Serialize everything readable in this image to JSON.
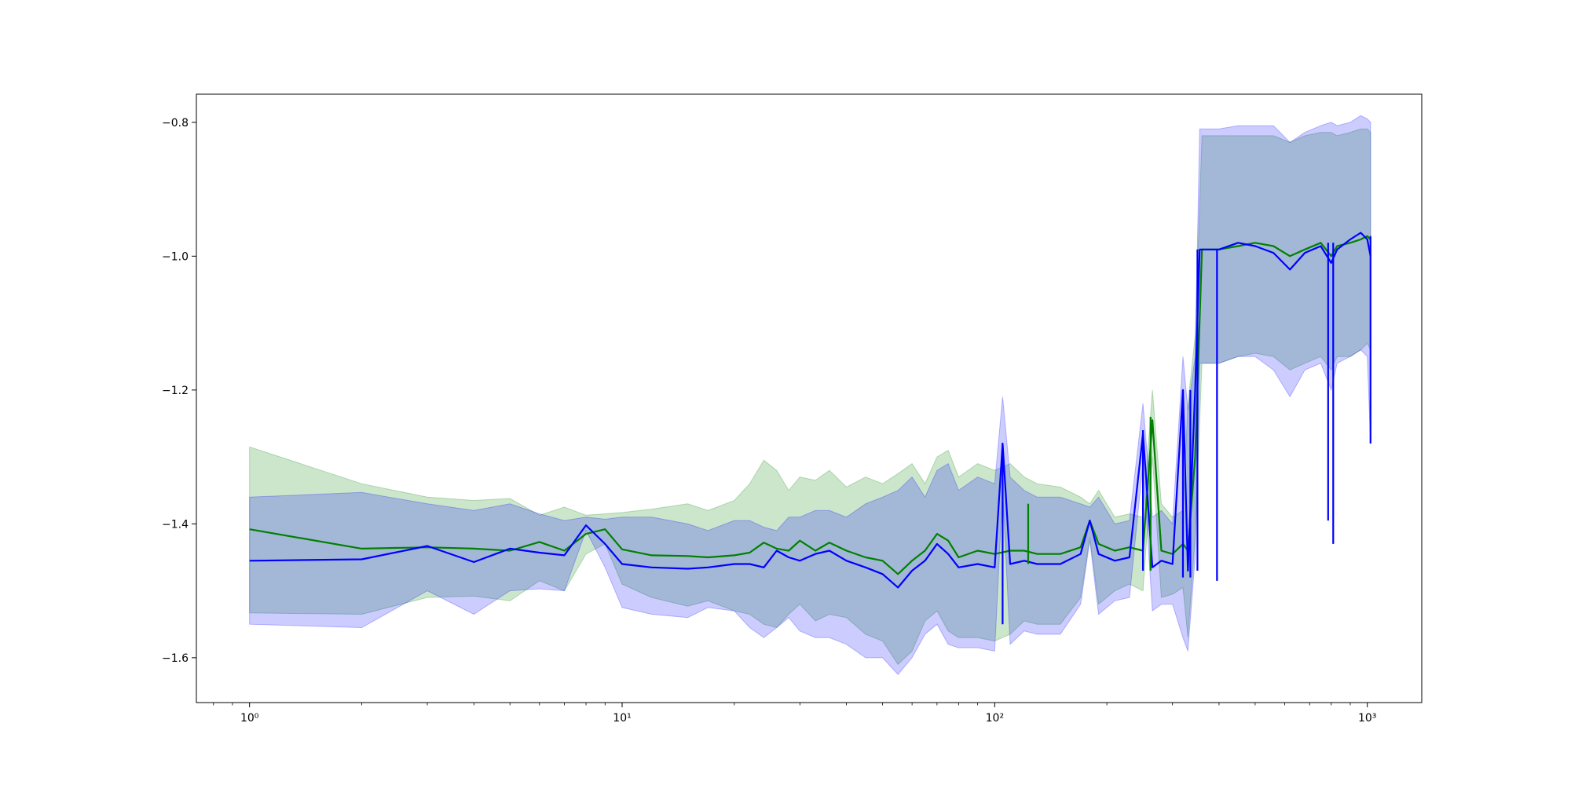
{
  "chart_data": {
    "type": "line",
    "title": "",
    "xlabel": "",
    "ylabel": "",
    "x_scale": "log",
    "xlim": [
      0.72,
      1400
    ],
    "ylim": [
      -1.667,
      -0.758
    ],
    "grid": false,
    "legend": "none",
    "x_ticks": [
      {
        "value": 1,
        "label": "10⁰"
      },
      {
        "value": 10,
        "label": "10¹"
      },
      {
        "value": 100,
        "label": "10²"
      },
      {
        "value": 1000,
        "label": "10³"
      }
    ],
    "y_ticks": [
      {
        "value": -0.8,
        "label": "−0.8"
      },
      {
        "value": -1.0,
        "label": "−1.0"
      },
      {
        "value": -1.2,
        "label": "−1.2"
      },
      {
        "value": -1.4,
        "label": "−1.4"
      },
      {
        "value": -1.6,
        "label": "−1.6"
      }
    ],
    "series": [
      {
        "color": "#008000",
        "band_color": "#008000",
        "band_opacity": 0.2,
        "points": [
          [
            1,
            -1.408,
            -1.285,
            -1.533
          ],
          [
            2,
            -1.437,
            -1.34,
            -1.535
          ],
          [
            3,
            -1.435,
            -1.36,
            -1.51
          ],
          [
            4,
            -1.437,
            -1.365,
            -1.508
          ],
          [
            5,
            -1.44,
            -1.362,
            -1.515
          ],
          [
            6,
            -1.427,
            -1.387,
            -1.485
          ],
          [
            7,
            -1.44,
            -1.375,
            -1.5
          ],
          [
            8,
            -1.415,
            -1.387,
            -1.445
          ],
          [
            9,
            -1.408,
            -1.385,
            -1.43
          ],
          [
            10,
            -1.438,
            -1.383,
            -1.49
          ],
          [
            12,
            -1.447,
            -1.378,
            -1.51
          ],
          [
            15,
            -1.448,
            -1.37,
            -1.523
          ],
          [
            17,
            -1.45,
            -1.38,
            -1.515
          ],
          [
            20,
            -1.447,
            -1.365,
            -1.53
          ],
          [
            22,
            -1.443,
            -1.34,
            -1.535
          ],
          [
            24,
            -1.428,
            -1.305,
            -1.55
          ],
          [
            26,
            -1.437,
            -1.32,
            -1.555
          ],
          [
            28,
            -1.44,
            -1.35,
            -1.535
          ],
          [
            30,
            -1.425,
            -1.33,
            -1.52
          ],
          [
            33,
            -1.44,
            -1.335,
            -1.545
          ],
          [
            36,
            -1.428,
            -1.32,
            -1.535
          ],
          [
            40,
            -1.44,
            -1.345,
            -1.54
          ],
          [
            45,
            -1.45,
            -1.33,
            -1.565
          ],
          [
            50,
            -1.455,
            -1.34,
            -1.575
          ],
          [
            55,
            -1.475,
            -1.325,
            -1.61
          ],
          [
            60,
            -1.455,
            -1.31,
            -1.59
          ],
          [
            65,
            -1.44,
            -1.34,
            -1.545
          ],
          [
            70,
            -1.415,
            -1.3,
            -1.53
          ],
          [
            75,
            -1.425,
            -1.29,
            -1.56
          ],
          [
            80,
            -1.45,
            -1.33,
            -1.57
          ],
          [
            90,
            -1.44,
            -1.31,
            -1.57
          ],
          [
            100,
            -1.445,
            -1.32,
            -1.575
          ],
          [
            110,
            -1.44,
            -1.31,
            -1.565
          ],
          [
            120,
            -1.44,
            -1.33,
            -1.545
          ],
          [
            130,
            -1.445,
            -1.34,
            -1.55
          ],
          [
            150,
            -1.445,
            -1.345,
            -1.55
          ],
          [
            170,
            -1.435,
            -1.36,
            -1.51
          ],
          [
            180,
            -1.395,
            -1.37,
            -1.42
          ],
          [
            190,
            -1.43,
            -1.35,
            -1.52
          ],
          [
            210,
            -1.44,
            -1.39,
            -1.5
          ],
          [
            230,
            -1.435,
            -1.385,
            -1.49
          ],
          [
            250,
            -1.44,
            -1.39,
            -1.5
          ],
          [
            265,
            -1.245,
            -1.2,
            -1.3
          ],
          [
            280,
            -1.44,
            -1.37,
            -1.51
          ],
          [
            300,
            -1.445,
            -1.39,
            -1.505
          ],
          [
            320,
            -1.43,
            -1.38,
            -1.495
          ],
          [
            330,
            -1.44,
            -1.22,
            -1.57
          ],
          [
            345,
            -1.3,
            -1.12,
            -1.42
          ],
          [
            360,
            -0.99,
            -0.82,
            -1.16
          ],
          [
            400,
            -0.99,
            -0.82,
            -1.16
          ],
          [
            450,
            -0.985,
            -0.82,
            -1.15
          ],
          [
            500,
            -0.98,
            -0.82,
            -1.145
          ],
          [
            560,
            -0.985,
            -0.82,
            -1.15
          ],
          [
            620,
            -1.0,
            -0.83,
            -1.17
          ],
          [
            680,
            -0.99,
            -0.82,
            -1.16
          ],
          [
            750,
            -0.98,
            -0.815,
            -1.15
          ],
          [
            800,
            -1.0,
            -0.815,
            -1.17
          ],
          [
            830,
            -0.985,
            -0.82,
            -1.15
          ],
          [
            900,
            -0.98,
            -0.815,
            -1.15
          ],
          [
            960,
            -0.975,
            -0.81,
            -1.14
          ],
          [
            1000,
            -0.97,
            -0.81,
            -1.13
          ],
          [
            1020,
            -0.975,
            -0.815,
            -1.14
          ]
        ]
      },
      {
        "color": "#0000ff",
        "band_color": "#0000ff",
        "band_opacity": 0.2,
        "points": [
          [
            1,
            -1.455,
            -1.36,
            -1.55
          ],
          [
            2,
            -1.453,
            -1.353,
            -1.555
          ],
          [
            3,
            -1.433,
            -1.37,
            -1.5
          ],
          [
            4,
            -1.457,
            -1.38,
            -1.535
          ],
          [
            5,
            -1.437,
            -1.37,
            -1.5
          ],
          [
            6,
            -1.443,
            -1.385,
            -1.497
          ],
          [
            7,
            -1.447,
            -1.395,
            -1.5
          ],
          [
            8,
            -1.402,
            -1.39,
            -1.41
          ],
          [
            9,
            -1.43,
            -1.393,
            -1.465
          ],
          [
            10,
            -1.46,
            -1.39,
            -1.525
          ],
          [
            12,
            -1.465,
            -1.39,
            -1.535
          ],
          [
            15,
            -1.467,
            -1.4,
            -1.54
          ],
          [
            17,
            -1.465,
            -1.41,
            -1.525
          ],
          [
            20,
            -1.46,
            -1.395,
            -1.53
          ],
          [
            22,
            -1.46,
            -1.395,
            -1.555
          ],
          [
            24,
            -1.465,
            -1.405,
            -1.57
          ],
          [
            26,
            -1.44,
            -1.41,
            -1.555
          ],
          [
            28,
            -1.45,
            -1.39,
            -1.54
          ],
          [
            30,
            -1.455,
            -1.39,
            -1.56
          ],
          [
            33,
            -1.445,
            -1.38,
            -1.57
          ],
          [
            36,
            -1.44,
            -1.38,
            -1.57
          ],
          [
            40,
            -1.455,
            -1.39,
            -1.58
          ],
          [
            45,
            -1.465,
            -1.37,
            -1.6
          ],
          [
            50,
            -1.475,
            -1.36,
            -1.6
          ],
          [
            55,
            -1.495,
            -1.35,
            -1.625
          ],
          [
            60,
            -1.47,
            -1.33,
            -1.6
          ],
          [
            65,
            -1.455,
            -1.36,
            -1.565
          ],
          [
            70,
            -1.43,
            -1.32,
            -1.55
          ],
          [
            75,
            -1.445,
            -1.31,
            -1.58
          ],
          [
            80,
            -1.465,
            -1.35,
            -1.585
          ],
          [
            90,
            -1.46,
            -1.33,
            -1.585
          ],
          [
            100,
            -1.465,
            -1.34,
            -1.59
          ],
          [
            105,
            -1.28,
            -1.21,
            -1.35
          ],
          [
            110,
            -1.46,
            -1.33,
            -1.58
          ],
          [
            120,
            -1.455,
            -1.35,
            -1.56
          ],
          [
            130,
            -1.46,
            -1.36,
            -1.565
          ],
          [
            150,
            -1.46,
            -1.36,
            -1.565
          ],
          [
            170,
            -1.445,
            -1.37,
            -1.52
          ],
          [
            180,
            -1.395,
            -1.375,
            -1.425
          ],
          [
            190,
            -1.445,
            -1.36,
            -1.535
          ],
          [
            210,
            -1.455,
            -1.4,
            -1.515
          ],
          [
            230,
            -1.45,
            -1.395,
            -1.51
          ],
          [
            250,
            -1.265,
            -1.22,
            -1.31
          ],
          [
            265,
            -1.465,
            -1.39,
            -1.53
          ],
          [
            280,
            -1.455,
            -1.38,
            -1.52
          ],
          [
            300,
            -1.46,
            -1.4,
            -1.52
          ],
          [
            320,
            -1.2,
            -1.15,
            -1.57
          ],
          [
            330,
            -1.47,
            -1.23,
            -1.59
          ],
          [
            345,
            -1.2,
            -1.15,
            -1.45
          ],
          [
            355,
            -0.99,
            -0.81,
            -1.16
          ],
          [
            400,
            -0.99,
            -0.81,
            -1.16
          ],
          [
            450,
            -0.98,
            -0.805,
            -1.15
          ],
          [
            500,
            -0.985,
            -0.805,
            -1.15
          ],
          [
            560,
            -0.995,
            -0.805,
            -1.17
          ],
          [
            620,
            -1.02,
            -0.83,
            -1.21
          ],
          [
            680,
            -0.995,
            -0.815,
            -1.17
          ],
          [
            750,
            -0.985,
            -0.805,
            -1.16
          ],
          [
            800,
            -1.01,
            -0.8,
            -1.2
          ],
          [
            830,
            -0.99,
            -0.805,
            -1.16
          ],
          [
            900,
            -0.975,
            -0.8,
            -1.15
          ],
          [
            960,
            -0.965,
            -0.79,
            -1.14
          ],
          [
            1000,
            -0.975,
            -0.795,
            -1.15
          ],
          [
            1020,
            -1.0,
            -0.8,
            -1.28
          ]
        ]
      }
    ],
    "spikes": [
      {
        "series": 1,
        "x": 105,
        "lo": -1.55,
        "hi": -1.28
      },
      {
        "series": 0,
        "x": 123,
        "lo": -1.46,
        "hi": -1.37
      },
      {
        "series": 1,
        "x": 250,
        "lo": -1.47,
        "hi": -1.26
      },
      {
        "series": 0,
        "x": 262,
        "lo": -1.47,
        "hi": -1.24
      },
      {
        "series": 1,
        "x": 320,
        "lo": -1.48,
        "hi": -1.2
      },
      {
        "series": 1,
        "x": 335,
        "lo": -1.48,
        "hi": -1.2
      },
      {
        "series": 1,
        "x": 350,
        "lo": -1.47,
        "hi": -0.99
      },
      {
        "series": 1,
        "x": 395,
        "lo": -1.485,
        "hi": -0.99
      },
      {
        "series": 1,
        "x": 785,
        "lo": -1.395,
        "hi": -0.98
      },
      {
        "series": 1,
        "x": 810,
        "lo": -1.43,
        "hi": -0.98
      },
      {
        "series": 1,
        "x": 1020,
        "lo": -1.28,
        "hi": -0.97
      }
    ]
  }
}
